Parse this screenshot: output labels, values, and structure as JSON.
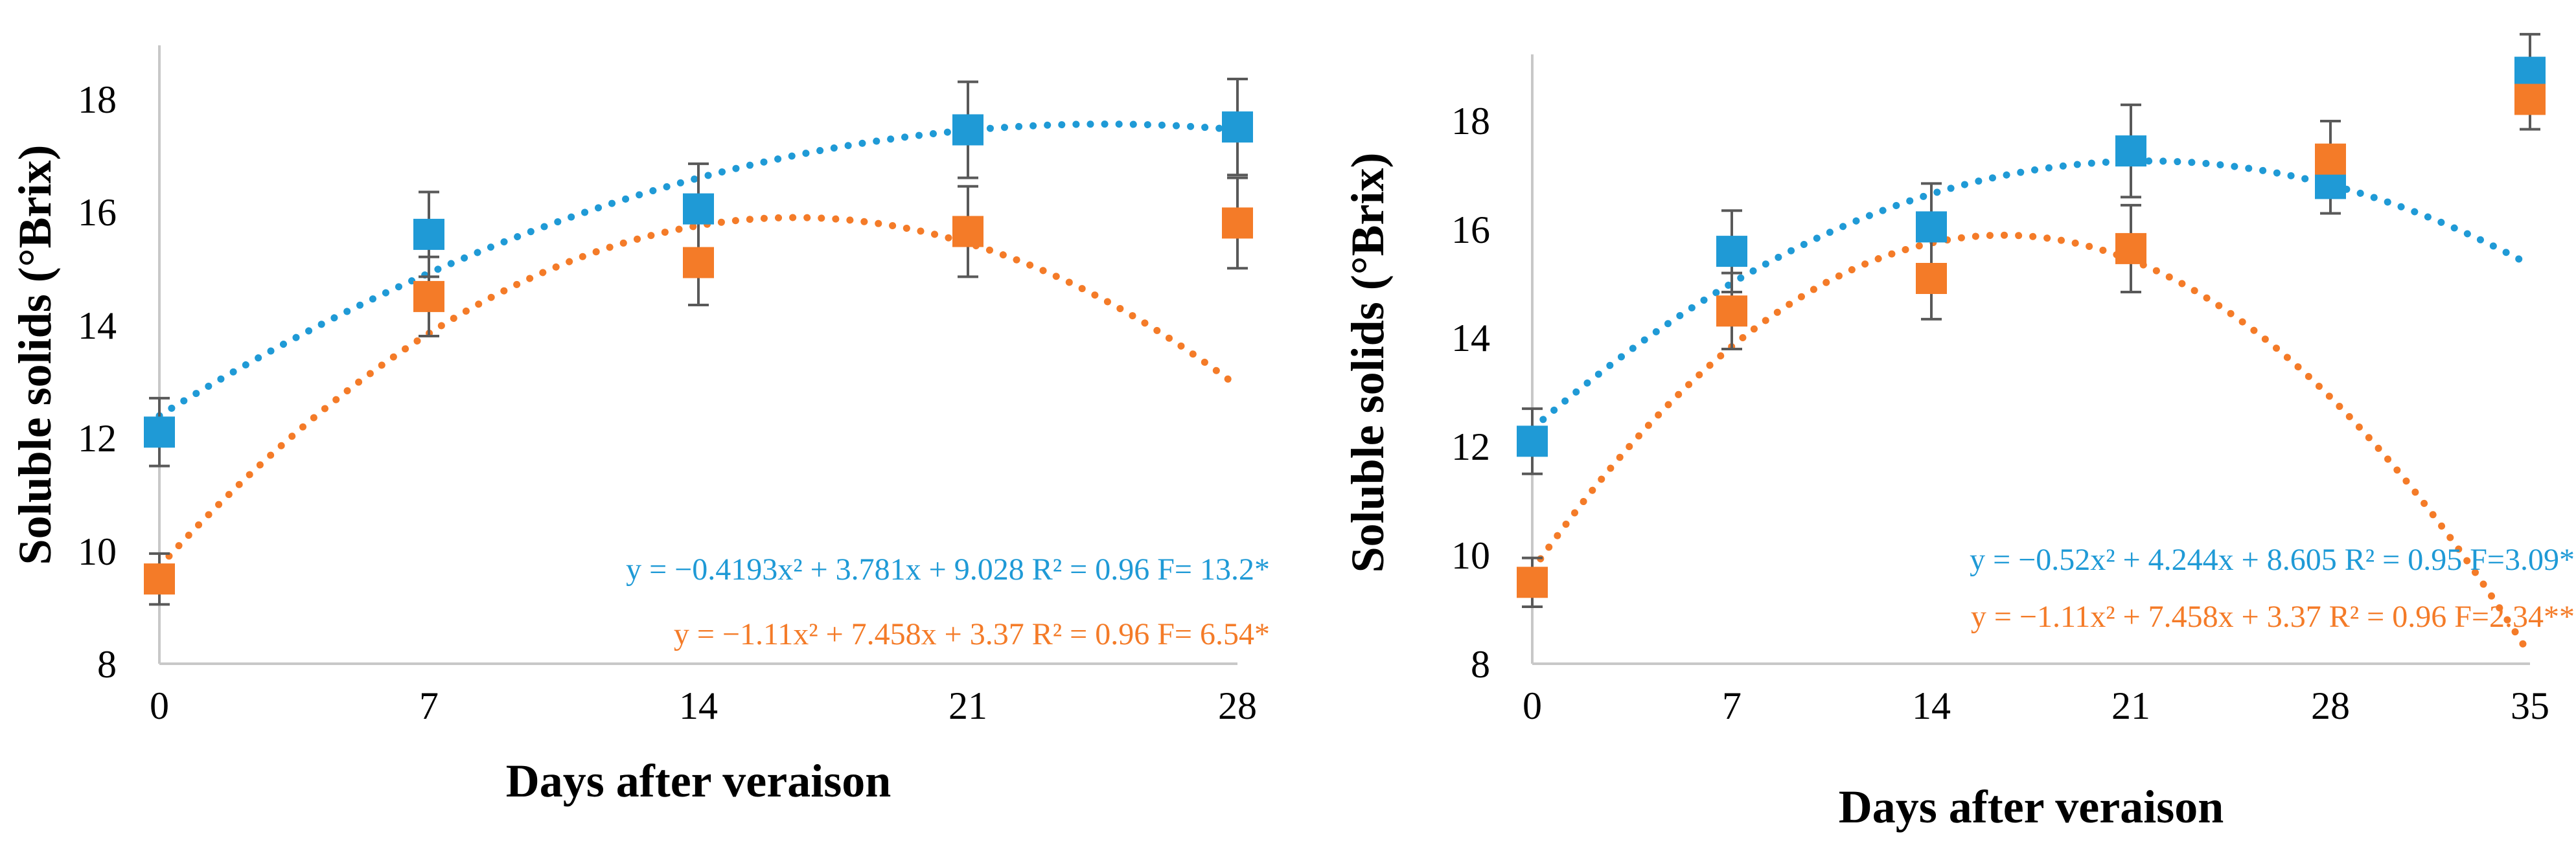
{
  "chart_data": [
    {
      "type": "scatter",
      "title": "",
      "xlabel": "Days after veraison",
      "ylabel": "Soluble solids (°Brix)",
      "x": [
        0,
        7,
        14,
        21,
        28
      ],
      "xlim": [
        0,
        28
      ],
      "ylim": [
        8,
        19
      ],
      "xticks": [
        "0",
        "7",
        "14",
        "21",
        "28"
      ],
      "yticks": [
        "8",
        "10",
        "12",
        "14",
        "16",
        "18"
      ],
      "trendline": "polynomial (order 2), dotted",
      "series": [
        {
          "name": "blue",
          "color": "#1F9AD6",
          "marker": "square",
          "values": [
            12.1,
            15.6,
            16.05,
            17.45,
            17.5
          ],
          "errors": [
            0.6,
            0.75,
            0.8,
            0.85,
            0.85
          ],
          "trend_coeffs": [
            -0.4193,
            3.781,
            9.028
          ],
          "equation": "y = −0.4193x² + 3.781x + 9.028 R² = 0.96   F= 13.2*"
        },
        {
          "name": "orange",
          "color": "#F47B28",
          "marker": "square",
          "values": [
            9.5,
            14.5,
            15.1,
            15.65,
            15.8
          ],
          "errors": [
            0.45,
            0.7,
            0.75,
            0.8,
            0.8
          ],
          "trend_coeffs": [
            -1.11,
            7.458,
            3.37
          ],
          "equation": "y = −1.11x² + 7.458x + 3.37 R² = 0.96   F= 6.54*"
        }
      ]
    },
    {
      "type": "scatter",
      "title": "",
      "xlabel": "Days after veraison",
      "ylabel": "Soluble solids (°Brix)",
      "x": [
        0,
        7,
        14,
        21,
        28,
        35
      ],
      "xlim": [
        0,
        35
      ],
      "ylim": [
        8,
        19
      ],
      "xticks": [
        "0",
        "7",
        "14",
        "21",
        "28",
        "35"
      ],
      "yticks": [
        "8",
        "10",
        "12",
        "14",
        "16",
        "18"
      ],
      "trendline": "polynomial (order 2), dotted",
      "series": [
        {
          "name": "blue",
          "color": "#1F9AD6",
          "marker": "square",
          "values": [
            12.1,
            15.6,
            16.05,
            17.45,
            16.85,
            18.9
          ],
          "errors": [
            0.6,
            0.75,
            0.8,
            0.85,
            0.55,
            0.7
          ],
          "trend_coeffs": [
            -0.52,
            4.244,
            8.605
          ],
          "equation": "y = −0.52x² + 4.244x + 8.605  R² = 0.95  F=3.09*"
        },
        {
          "name": "orange",
          "color": "#F47B28",
          "marker": "square",
          "values": [
            9.5,
            14.5,
            15.1,
            15.65,
            17.3,
            18.4
          ],
          "errors": [
            0.45,
            0.7,
            0.75,
            0.8,
            0.7,
            0.55
          ],
          "trend_coeffs": [
            -1.11,
            7.458,
            3.37
          ],
          "equation": "y = −1.11x² + 7.458x + 3.37  R² = 0.96  F=2.34**"
        }
      ]
    }
  ]
}
